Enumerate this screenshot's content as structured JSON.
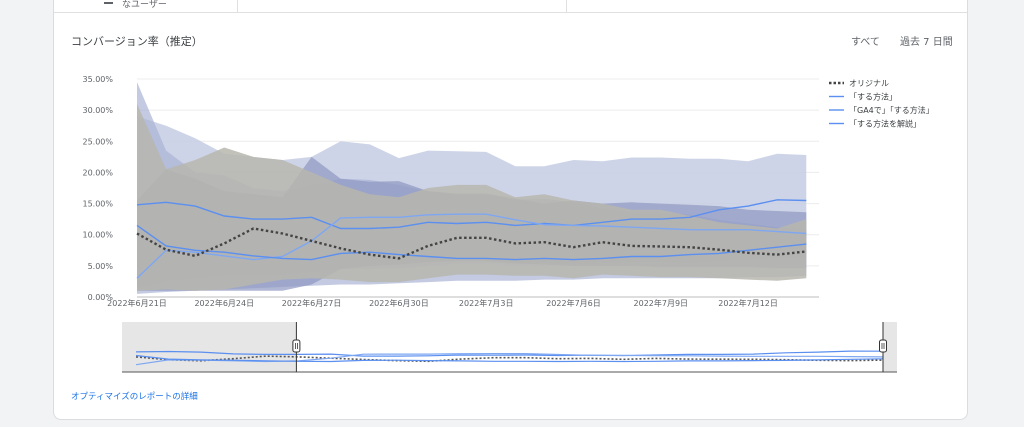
{
  "top_row": {
    "prev_label": "なユーザー"
  },
  "card": {
    "title": "コンバージョン率（推定）",
    "range_all": "すべて",
    "range_days": "過去 7 日間",
    "details_link": "オプティマイズのレポートの詳細"
  },
  "colors": {
    "band_light": "#c5cde3",
    "band_mid": "#a9b3d4",
    "band_dark": "#8e99c2",
    "band_gray": "#b7b6ae",
    "line_blue": "#5b8ff0",
    "line_light": "#7ea7f2",
    "original": "#444444"
  },
  "chart_data": {
    "type": "line",
    "yticks": [
      "35.00%",
      "30.00%",
      "25.00%",
      "20.00%",
      "15.00%",
      "10.00%",
      "5.00%",
      "0.00%"
    ],
    "ylim": [
      0,
      35
    ],
    "xlim": [
      0,
      24
    ],
    "xticks": [
      {
        "x": 0,
        "label": "2022年6月21日"
      },
      {
        "x": 3,
        "label": "2022年6月24日"
      },
      {
        "x": 6,
        "label": "2022年6月27日"
      },
      {
        "x": 9,
        "label": "2022年6月30日"
      },
      {
        "x": 12,
        "label": "2022年7月3日"
      },
      {
        "x": 15,
        "label": "2022年7月6日"
      },
      {
        "x": 18,
        "label": "2022年7月9日"
      },
      {
        "x": 21,
        "label": "2022年7月12日"
      }
    ],
    "legend": [
      {
        "name": "オリジナル",
        "style": "dotted",
        "color": "#444444"
      },
      {
        "name": "「する方法」",
        "style": "solid",
        "color": "#5b8ff0"
      },
      {
        "name": "「GA4で」「する方法」",
        "style": "solid",
        "color": "#5b8ff0"
      },
      {
        "name": "「する方法を解説」",
        "style": "solid",
        "color": "#5b8ff0"
      }
    ],
    "series": [
      {
        "name": "オリジナル",
        "color": "#444444",
        "dashed": true,
        "values": [
          10.2,
          7.6,
          6.6,
          8.6,
          11.0,
          10.2,
          9.0,
          7.8,
          6.8,
          6.2,
          8.2,
          9.5,
          9.5,
          8.6,
          8.8,
          8.0,
          8.8,
          8.2,
          8.1,
          8.0,
          7.6,
          7.1,
          6.8,
          7.3
        ],
        "band": {
          "color": "#b7b6ae",
          "opacity": 0.85,
          "upper": [
            31.0,
            20.5,
            22.0,
            24.0,
            22.5,
            22.0,
            20.0,
            18.0,
            16.5,
            16.0,
            17.5,
            18.0,
            18.0,
            16.0,
            16.5,
            15.5,
            15.0,
            14.0,
            14.0,
            13.0,
            12.0,
            11.5,
            11.0,
            12.5
          ],
          "lower": [
            1.0,
            1.2,
            1.0,
            1.2,
            2.0,
            2.8,
            3.0,
            2.8,
            2.4,
            2.4,
            3.0,
            3.6,
            3.6,
            3.4,
            3.4,
            3.0,
            3.6,
            3.4,
            3.2,
            3.2,
            3.0,
            2.8,
            2.6,
            3.0
          ]
        }
      },
      {
        "name": "「する方法」",
        "color": "#5b8ff0",
        "values": [
          14.8,
          15.2,
          14.6,
          13.0,
          12.5,
          12.5,
          12.8,
          11.0,
          11.0,
          11.2,
          12.0,
          11.8,
          12.0,
          11.5,
          11.8,
          11.5,
          12.0,
          12.5,
          12.5,
          12.8,
          14.0,
          14.6,
          15.6,
          15.5
        ],
        "band": {
          "color": "#c5cde3",
          "opacity": 0.85,
          "upper": [
            29.0,
            27.5,
            25.5,
            23.0,
            22.5,
            22.0,
            22.5,
            25.0,
            24.5,
            22.3,
            23.5,
            23.4,
            23.3,
            21.0,
            21.0,
            22.0,
            21.8,
            22.4,
            22.4,
            22.2,
            22.2,
            21.8,
            23.0,
            22.8
          ],
          "lower": [
            1.5,
            2.5,
            3.0,
            3.5,
            3.5,
            3.5,
            4.0,
            4.5,
            4.5,
            4.6,
            5.0,
            5.4,
            5.4,
            5.2,
            5.4,
            5.2,
            5.4,
            5.6,
            5.6,
            5.4,
            5.8,
            6.0,
            6.2,
            6.4
          ]
        }
      },
      {
        "name": "「GA4で」「する方法」",
        "color": "#7ea7f2",
        "values": [
          3.0,
          7.5,
          7.2,
          6.6,
          6.0,
          6.5,
          9.0,
          12.7,
          12.8,
          12.8,
          13.2,
          13.3,
          13.3,
          12.4,
          11.6,
          11.5,
          11.4,
          11.2,
          11.0,
          10.8,
          10.8,
          10.8,
          10.5,
          10.2
        ],
        "band": {
          "color": "#8e99c2",
          "opacity": 0.7,
          "upper": [
            15.5,
            20.5,
            19.0,
            17.0,
            16.5,
            16.0,
            22.5,
            19.0,
            18.5,
            18.6,
            17.0,
            16.6,
            16.6,
            15.8,
            15.0,
            15.5,
            15.0,
            15.2,
            15.0,
            14.8,
            14.6,
            14.0,
            13.8,
            13.6
          ],
          "lower": [
            1.0,
            1.0,
            1.0,
            1.0,
            1.0,
            1.0,
            2.0,
            4.5,
            5.0,
            5.2,
            5.6,
            5.8,
            5.8,
            5.4,
            5.2,
            5.0,
            5.0,
            5.0,
            4.8,
            4.8,
            4.8,
            4.8,
            4.6,
            4.6
          ]
        }
      },
      {
        "name": "「する方法を解説」",
        "color": "#5b8ff0",
        "values": [
          11.5,
          8.2,
          7.5,
          7.2,
          6.6,
          6.2,
          6.0,
          7.0,
          7.2,
          6.8,
          6.5,
          6.2,
          6.2,
          6.0,
          6.2,
          6.0,
          6.2,
          6.5,
          6.5,
          6.8,
          7.0,
          7.5,
          8.0,
          8.5
        ],
        "band": {
          "color": "#a9b3d4",
          "opacity": 0.7,
          "upper": [
            34.5,
            23.5,
            20.0,
            19.5,
            17.5,
            17.0,
            18.0,
            19.0,
            18.8,
            18.0,
            17.0,
            16.4,
            16.4,
            15.6,
            15.8,
            15.2,
            14.2,
            13.6,
            13.6,
            13.2,
            12.4,
            11.8,
            11.2,
            11.0
          ],
          "lower": [
            0.5,
            0.8,
            1.0,
            1.2,
            1.4,
            1.6,
            1.8,
            2.0,
            2.0,
            2.2,
            2.4,
            2.6,
            2.6,
            2.6,
            2.8,
            2.8,
            3.0,
            3.0,
            3.0,
            3.0,
            3.0,
            3.2,
            3.2,
            3.4
          ]
        }
      }
    ],
    "navigator": {
      "selected": [
        5,
        24
      ]
    }
  }
}
